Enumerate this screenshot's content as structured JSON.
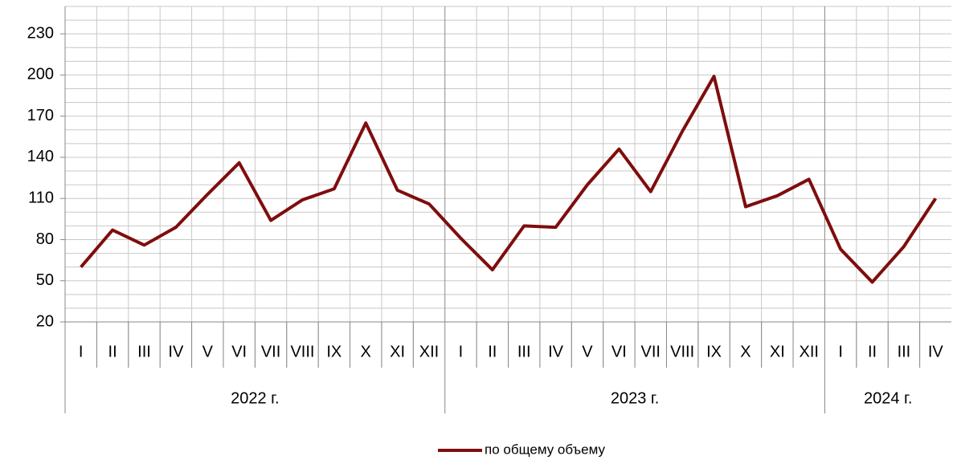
{
  "chart_data": {
    "type": "line",
    "category_groups": [
      {
        "label": "2022 г.",
        "categories": [
          "I",
          "II",
          "III",
          "IV",
          "V",
          "VI",
          "VII",
          "VIII",
          "IX",
          "X",
          "XI",
          "XII"
        ]
      },
      {
        "label": "2023 г.",
        "categories": [
          "I",
          "II",
          "III",
          "IV",
          "V",
          "VI",
          "VII",
          "VIII",
          "IX",
          "X",
          "XI",
          "XII"
        ]
      },
      {
        "label": "2024 г.",
        "categories": [
          "I",
          "II",
          "III",
          "IV"
        ]
      }
    ],
    "series": [
      {
        "name": "по общему объему",
        "color": "#7f0d0d",
        "values": [
          60,
          87,
          76,
          89,
          113,
          136,
          94,
          109,
          117,
          165,
          116,
          106,
          81,
          58,
          90,
          89,
          120,
          146,
          115,
          159,
          199,
          104,
          112,
          124,
          73,
          49,
          75,
          110
        ]
      }
    ],
    "ylim": [
      20,
      250
    ],
    "yticks": [
      20,
      50,
      80,
      110,
      140,
      170,
      200,
      230
    ],
    "minor_yticks": [
      30,
      40,
      60,
      70,
      90,
      100,
      120,
      130,
      150,
      160,
      180,
      190,
      210,
      220,
      240,
      250
    ],
    "grid": true,
    "legend": "bottom"
  }
}
